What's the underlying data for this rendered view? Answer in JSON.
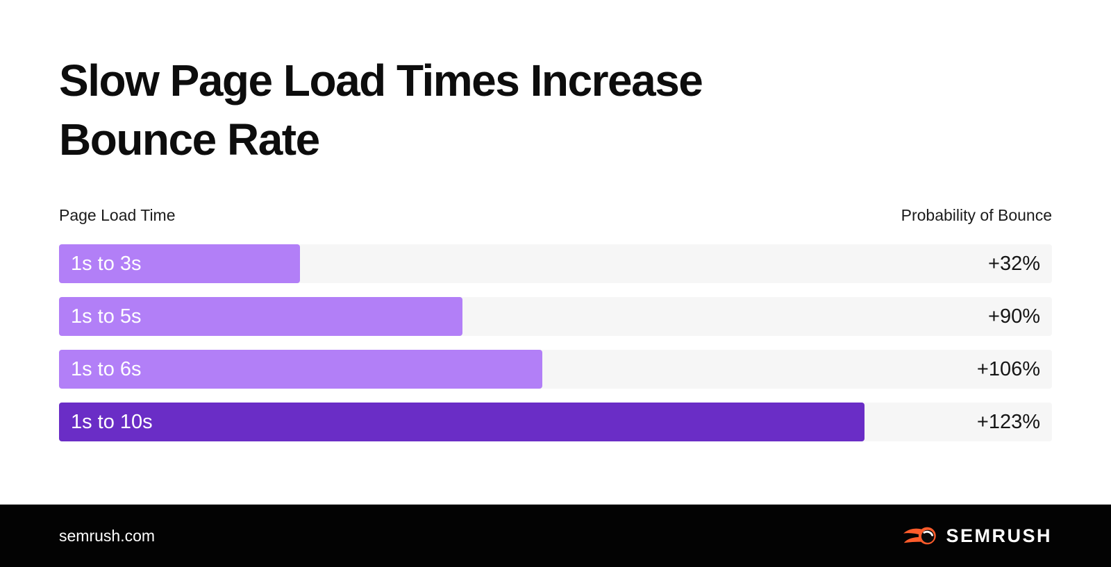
{
  "title": {
    "line1": "Slow Page Load Times Increase",
    "line2": "Bounce Rate"
  },
  "chart": {
    "left_header": "Page Load Time",
    "right_header": "Probability of Bounce"
  },
  "chart_data": {
    "type": "bar",
    "orientation": "horizontal",
    "title": "Slow Page Load Times Increase Bounce Rate",
    "xlabel": "Probability of Bounce",
    "ylabel": "Page Load Time",
    "categories": [
      "1s to 3s",
      "1s to 5s",
      "1s to 6s",
      "1s to 10s"
    ],
    "values": [
      32,
      90,
      106,
      123
    ],
    "value_labels": [
      "+32%",
      "+90%",
      "+106%",
      "+123%"
    ],
    "load_time_upper_seconds": [
      3,
      5,
      6,
      10
    ],
    "bar_width_pct": [
      24.3,
      40.6,
      48.7,
      81.1
    ],
    "bar_colors": [
      "#b27ff7",
      "#b27ff7",
      "#b27ff7",
      "#6a2dc6"
    ],
    "track_color": "#f6f6f6",
    "grid": false,
    "legend": false
  },
  "footer": {
    "site": "semrush.com",
    "brand": "SEMRUSH"
  },
  "colors": {
    "accent_light": "#b27ff7",
    "accent_dark": "#6a2dc6",
    "track": "#f6f6f6",
    "footer_bg": "#030303",
    "logo_orange": "#ff5c2b",
    "text_dark": "#0d0d0d"
  }
}
